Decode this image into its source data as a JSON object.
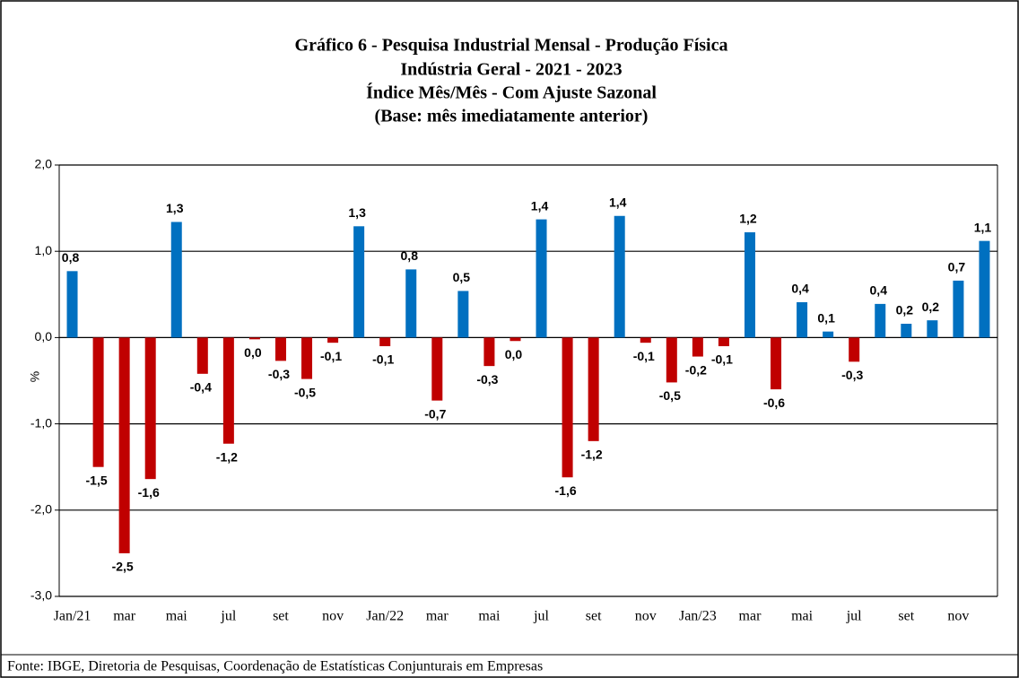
{
  "chart_data": {
    "type": "bar",
    "title": [
      "Gráfico 6 - Pesquisa Industrial Mensal - Produção Física",
      "Indústria Geral - 2021 - 2023",
      "Índice Mês/Mês - Com Ajuste Sazonal",
      "(Base: mês imediatamente anterior)"
    ],
    "y_label": "%",
    "source": "Fonte: IBGE, Diretoria de Pesquisas, Coordenação de Estatísticas Conjunturais em Empresas",
    "categories": [
      "Jan/21",
      null,
      "mar",
      null,
      "mai",
      null,
      "jul",
      null,
      "set",
      null,
      "nov",
      null,
      "Jan/22",
      null,
      "mar",
      null,
      "mai",
      null,
      "jul",
      null,
      "set",
      null,
      "nov",
      null,
      "Jan/23",
      null,
      "mar",
      null,
      "mai",
      null,
      "jul",
      null,
      "set",
      null,
      "nov",
      null
    ],
    "values": [
      0.77,
      -1.5,
      -2.5,
      -1.64,
      1.34,
      -0.42,
      -1.23,
      -0.02,
      -0.27,
      -0.48,
      -0.06,
      1.29,
      -0.1,
      0.79,
      -0.73,
      0.54,
      -0.33,
      -0.04,
      1.37,
      -1.62,
      -1.2,
      1.41,
      -0.06,
      -0.52,
      -0.22,
      -0.1,
      1.22,
      -0.6,
      0.41,
      0.07,
      -0.28,
      0.39,
      0.16,
      0.2,
      0.66,
      1.12
    ],
    "value_labels": [
      "0,8",
      "-1,5",
      "-2,5",
      "-1,6",
      "1,3",
      "-0,4",
      "-1,2",
      "0,0",
      "-0,3",
      "-0,5",
      "-0,1",
      "1,3",
      "-0,1",
      "0,8",
      "-0,7",
      "0,5",
      "-0,3",
      "0,0",
      "1,4",
      "-1,6",
      "-1,2",
      "1,4",
      "-0,1",
      "-0,5",
      "-0,2",
      "-0,1",
      "1,2",
      "-0,6",
      "0,4",
      "0,1",
      "-0,3",
      "0,4",
      "0,2",
      "0,2",
      "0,7",
      "1,1"
    ],
    "positive_color": "#0070c0",
    "negative_color": "#c00000",
    "ylim": [
      -3,
      2
    ],
    "yticks": [
      {
        "value": -3,
        "label": "-3,0"
      },
      {
        "value": -2,
        "label": "-2,0"
      },
      {
        "value": -1,
        "label": "-1,0"
      },
      {
        "value": 0,
        "label": "0,0"
      },
      {
        "value": 1,
        "label": "1,0"
      },
      {
        "value": 2,
        "label": "2,0"
      }
    ],
    "grid": true
  }
}
